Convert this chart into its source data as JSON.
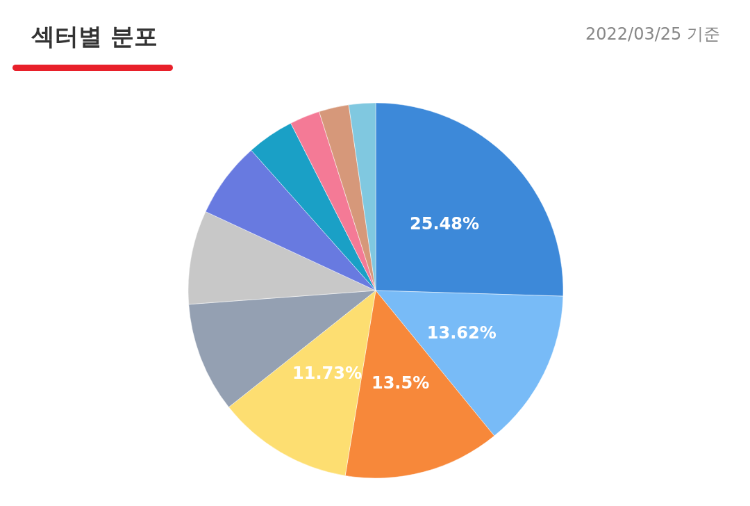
{
  "chart_data": {
    "type": "pie",
    "title": "섹터별 분포",
    "subtitle": "2022/03/25 기준",
    "categories": [
      null,
      null,
      null,
      null,
      null,
      null,
      null,
      null,
      null,
      null,
      null
    ],
    "values": [
      25.48,
      13.62,
      13.5,
      11.73,
      9.5,
      8.08,
      6.53,
      4.08,
      2.6,
      2.58,
      2.3
    ],
    "value_labels": [
      "25.48%",
      "13.62%",
      "13.5%",
      "11.73%",
      null,
      null,
      null,
      null,
      null,
      null,
      null
    ],
    "colors": [
      "#3d89d9",
      "#78bbf7",
      "#f7883a",
      "#fdde71",
      "#94a0b2",
      "#c8c8c8",
      "#687ae0",
      "#1aa0c6",
      "#f47a96",
      "#d6987a",
      "#80c8e0"
    ]
  }
}
